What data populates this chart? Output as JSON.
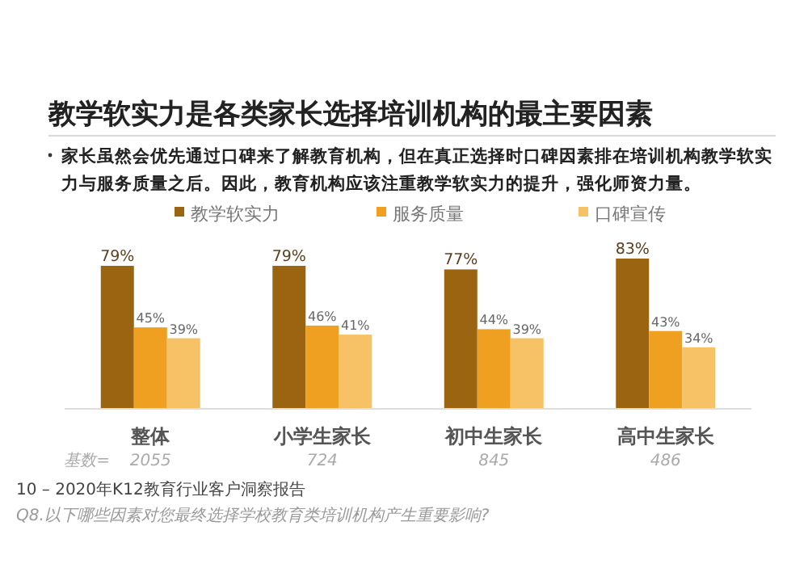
{
  "chart_data": {
    "type": "bar",
    "title": "教学软实力是各类家长选择培训机构的最主要因素",
    "subtitle": "家长虽然会优先通过口碑来了解教育机构，但在真正选择时口碑因素排在培训机构教学软实力与服务质量之后。因此，教育机构应该注重教学软实力的提升，强化师资力量。",
    "categories": [
      "整体",
      "小学生家长",
      "初中生家长",
      "高中生家长"
    ],
    "series": [
      {
        "name": "教学软实力",
        "color": "#9a6410",
        "values": [
          79,
          79,
          77,
          83
        ],
        "value_labels": [
          "79%",
          "79%",
          "77%",
          "83%"
        ]
      },
      {
        "name": "服务质量",
        "color": "#f0a020",
        "values": [
          45,
          46,
          44,
          43
        ],
        "value_labels": [
          "45%",
          "46%",
          "44%",
          "43%"
        ]
      },
      {
        "name": "口碑宣传",
        "color": "#f6c265",
        "values": [
          39,
          41,
          39,
          34
        ],
        "value_labels": [
          "39%",
          "41%",
          "39%",
          "34%"
        ]
      }
    ],
    "legend": "top",
    "annotations": [
      "基数=",
      "2055",
      "724",
      "845",
      "486",
      "10 – 2020年K12教育行业客户洞察报告",
      "Q8.以下哪些因素对您最终选择学校教育类培训机构产生重要影响?"
    ]
  }
}
